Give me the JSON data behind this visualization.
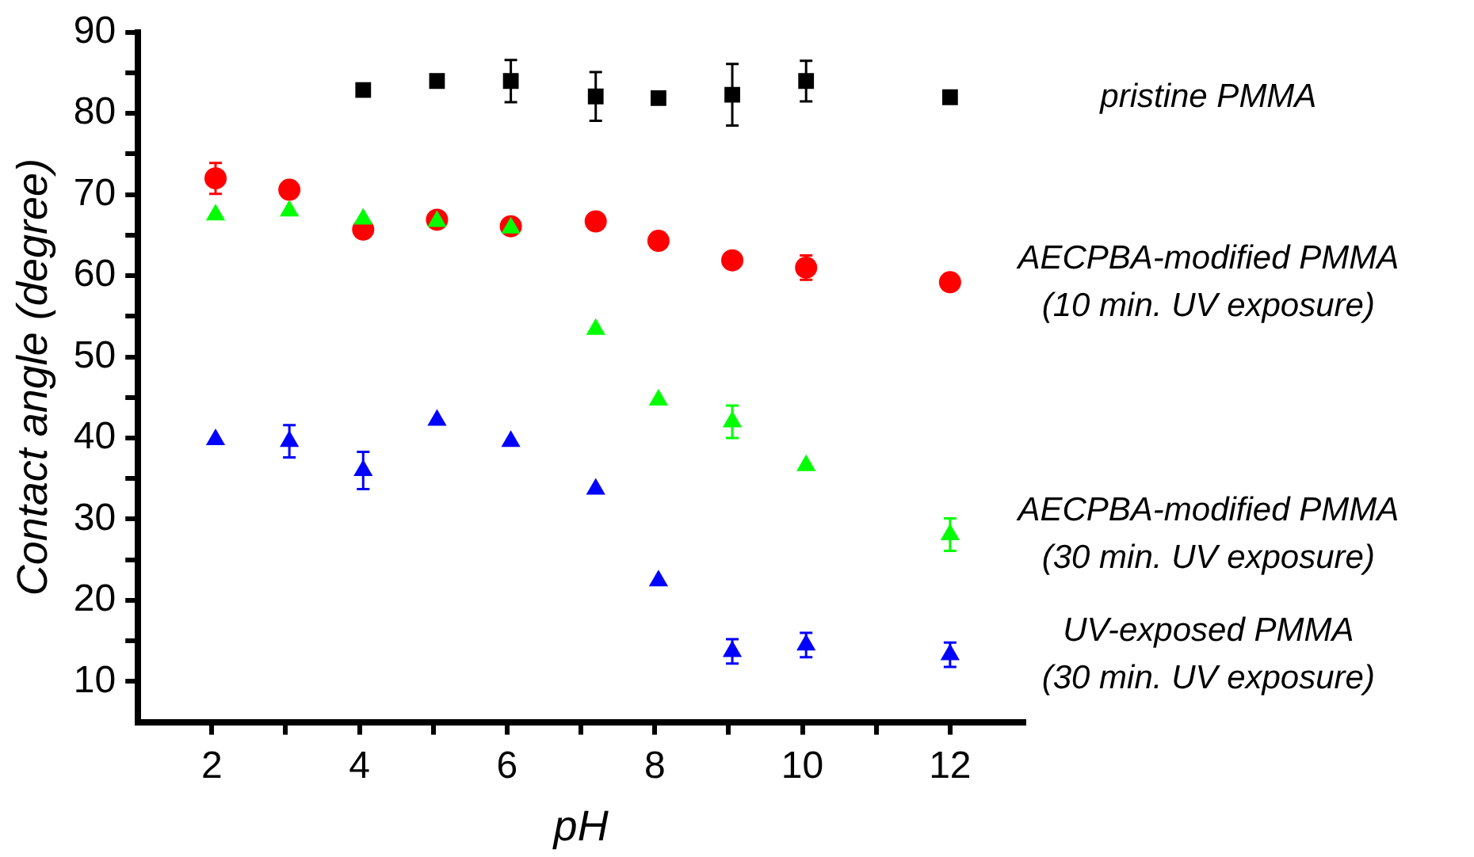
{
  "chart_data": {
    "type": "scatter",
    "xlabel": "pH",
    "ylabel": "Contact angle (degree)",
    "xlim": [
      1,
      13
    ],
    "xticks": [
      2,
      {
        "value": 3,
        "label": null
      },
      4,
      {
        "value": 5,
        "label": null
      },
      6,
      {
        "value": 7,
        "label": null
      },
      8,
      {
        "value": 9,
        "label": null
      },
      10,
      {
        "value": 11,
        "label": null
      },
      12
    ],
    "ylim": [
      5,
      90
    ],
    "yticks": [
      10,
      {
        "value": 15,
        "label": null
      },
      20,
      {
        "value": 25,
        "label": null
      },
      30,
      {
        "value": 35,
        "label": null
      },
      40,
      {
        "value": 45,
        "label": null
      },
      50,
      {
        "value": 55,
        "label": null
      },
      60,
      {
        "value": 65,
        "label": null
      },
      70,
      {
        "value": 75,
        "label": null
      },
      80,
      {
        "value": 85,
        "label": null
      },
      90
    ],
    "grid": false,
    "legend": false,
    "series": [
      {
        "name": "pristine PMMA",
        "color": "#000000",
        "marker": "square",
        "x": [
          4.05,
          5.05,
          6.05,
          7.2,
          8.05,
          9.05,
          10.05,
          12
        ],
        "values": [
          82.9,
          84,
          84,
          82.1,
          81.9,
          82.3,
          84,
          82
        ],
        "errors": [
          null,
          null,
          2.6,
          3,
          null,
          3.8,
          2.5,
          null
        ]
      },
      {
        "name": "AECPBA-modified PMMA\n(10 min. UV exposure)",
        "color": "#ff0000",
        "marker": "circle",
        "x": [
          2.05,
          3.05,
          4.05,
          5.05,
          6.05,
          7.2,
          8.05,
          9.05,
          10.05,
          12
        ],
        "values": [
          72,
          70.6,
          65.7,
          66.9,
          66.1,
          66.7,
          64.3,
          61.9,
          61,
          59.2
        ],
        "errors": [
          1.9,
          null,
          null,
          null,
          null,
          null,
          null,
          null,
          1.5,
          null
        ]
      },
      {
        "name": "AECPBA-modified PMMA\n(30 min. UV exposure)",
        "color": "#00ff00",
        "marker": "triangle",
        "x": [
          2.05,
          3.05,
          4.05,
          5.05,
          6.05,
          7.2,
          8.05,
          9.05,
          10.05,
          12
        ],
        "values": [
          67.5,
          68,
          67,
          66.7,
          65.9,
          53.4,
          44.7,
          42,
          36.6,
          28.1
        ],
        "errors": [
          null,
          null,
          null,
          null,
          null,
          null,
          null,
          2,
          null,
          2
        ]
      },
      {
        "name": "UV-exposed PMMA\n(30 min. UV exposure)",
        "color": "#0000ff",
        "marker": "triangle",
        "x": [
          2.05,
          3.05,
          4.05,
          5.05,
          6.05,
          7.2,
          8.05,
          9.05,
          10.05,
          12
        ],
        "values": [
          39.8,
          39.6,
          36,
          42.2,
          39.6,
          33.7,
          22.4,
          13.7,
          14.5,
          13.3
        ],
        "errors": [
          null,
          2,
          2.3,
          null,
          null,
          null,
          null,
          1.5,
          1.5,
          1.5
        ]
      }
    ]
  }
}
